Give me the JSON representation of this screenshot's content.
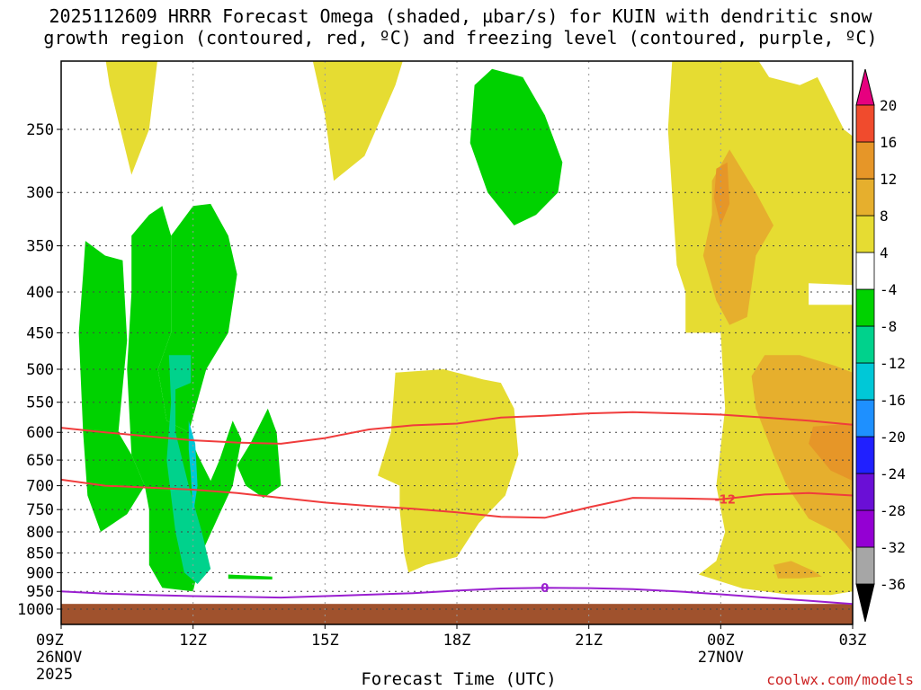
{
  "chart_data": {
    "type": "heatmap",
    "title": "2025112609 HRRR Forecast Omega (shaded, µbar/s) for KUIN with dendritic snow\ngrowth region (contoured, red, ºC) and freezing level (contoured, purple, ºC)",
    "xlabel": "Forecast Time (UTC)",
    "ylabel": "",
    "credit": "coolwx.com/models",
    "x_hours_range": [
      9,
      27
    ],
    "y_pressure_range": [
      1000,
      200
    ],
    "x_ticks": [
      {
        "h": 9,
        "label": "09Z",
        "sub1": "26NOV",
        "sub2": "2025"
      },
      {
        "h": 12,
        "label": "12Z",
        "sub1": "",
        "sub2": ""
      },
      {
        "h": 15,
        "label": "15Z",
        "sub1": "",
        "sub2": ""
      },
      {
        "h": 18,
        "label": "18Z",
        "sub1": "",
        "sub2": ""
      },
      {
        "h": 21,
        "label": "21Z",
        "sub1": "",
        "sub2": ""
      },
      {
        "h": 24,
        "label": "00Z",
        "sub1": "27NOV",
        "sub2": ""
      },
      {
        "h": 27,
        "label": "03Z",
        "sub1": "",
        "sub2": ""
      }
    ],
    "y_ticks": [
      250,
      300,
      350,
      400,
      450,
      500,
      550,
      600,
      650,
      700,
      750,
      800,
      850,
      900,
      950,
      1000
    ],
    "grid": true,
    "colorbar": {
      "levels": [
        -36,
        -32,
        -28,
        -24,
        -20,
        -16,
        -12,
        -8,
        -4,
        4,
        8,
        12,
        16,
        20
      ],
      "colors": [
        "#a6a6a6",
        "#9400d3",
        "#6a0fd6",
        "#2020ff",
        "#1e90ff",
        "#00c8d7",
        "#00d28c",
        "#00d200",
        "#ffffff",
        "#e6dc32",
        "#e6af2d",
        "#e69628",
        "#f04b2d",
        "#e6007f"
      ],
      "below_color": "#000000",
      "above_color": "#e6007f"
    },
    "ground_color": "#a0522d",
    "ground_top_hpa": 985,
    "omega_regions": [
      {
        "value": 6,
        "color": "#e6dc32",
        "points": [
          [
            10.0,
            0
          ],
          [
            11.2,
            0
          ],
          [
            11.0,
            250
          ],
          [
            10.6,
            285
          ],
          [
            10.1,
            220
          ]
        ]
      },
      {
        "value": -6,
        "color": "#00d200",
        "points": [
          [
            9.55,
            345
          ],
          [
            10.0,
            360
          ],
          [
            10.4,
            365
          ],
          [
            10.5,
            460
          ],
          [
            10.3,
            600
          ],
          [
            10.6,
            640
          ],
          [
            10.9,
            700
          ],
          [
            10.5,
            760
          ],
          [
            9.9,
            800
          ],
          [
            9.6,
            720
          ],
          [
            9.5,
            600
          ],
          [
            9.4,
            450
          ],
          [
            9.5,
            380
          ]
        ]
      },
      {
        "value": -6,
        "color": "#00d200",
        "points": [
          [
            10.6,
            340
          ],
          [
            11.0,
            320
          ],
          [
            11.3,
            312
          ],
          [
            11.5,
            340
          ],
          [
            11.5,
            450
          ],
          [
            11.2,
            500
          ],
          [
            11.4,
            580
          ],
          [
            11.9,
            600
          ],
          [
            12.1,
            640
          ],
          [
            12.4,
            690
          ],
          [
            12.6,
            650
          ],
          [
            12.9,
            580
          ],
          [
            13.1,
            612
          ],
          [
            12.9,
            700
          ],
          [
            12.6,
            760
          ],
          [
            12.2,
            850
          ],
          [
            12.0,
            950
          ],
          [
            11.3,
            940
          ],
          [
            11.0,
            880
          ],
          [
            11.0,
            750
          ],
          [
            10.9,
            700
          ],
          [
            10.6,
            640
          ],
          [
            10.5,
            500
          ],
          [
            10.6,
            400
          ]
        ]
      },
      {
        "value": -6,
        "color": "#00d200",
        "points": [
          [
            12.0,
            312
          ],
          [
            12.4,
            310
          ],
          [
            12.8,
            340
          ],
          [
            13.0,
            380
          ],
          [
            12.8,
            450
          ],
          [
            12.3,
            500
          ],
          [
            11.9,
            600
          ],
          [
            11.4,
            580
          ],
          [
            11.2,
            500
          ],
          [
            11.5,
            450
          ],
          [
            11.5,
            340
          ]
        ]
      },
      {
        "value": -6,
        "color": "#00d200",
        "points": [
          [
            13.7,
            560
          ],
          [
            13.9,
            600
          ],
          [
            14.0,
            700
          ],
          [
            13.6,
            725
          ],
          [
            13.2,
            700
          ],
          [
            13.0,
            660
          ],
          [
            13.3,
            620
          ]
        ]
      },
      {
        "value": -6,
        "color": "#00d200",
        "points": [
          [
            12.8,
            905
          ],
          [
            13.8,
            910
          ],
          [
            13.8,
            918
          ],
          [
            12.8,
            916
          ]
        ]
      },
      {
        "value": -10,
        "color": "#00d28c",
        "points": [
          [
            11.45,
            480
          ],
          [
            11.95,
            480
          ],
          [
            11.95,
            520
          ],
          [
            11.6,
            530
          ],
          [
            11.6,
            600
          ],
          [
            11.9,
            700
          ],
          [
            12.2,
            800
          ],
          [
            12.4,
            890
          ],
          [
            12.1,
            930
          ],
          [
            11.8,
            900
          ],
          [
            11.6,
            800
          ],
          [
            11.4,
            650
          ],
          [
            11.5,
            550
          ]
        ]
      },
      {
        "value": -14,
        "color": "#00c8d7",
        "points": [
          [
            11.9,
            580
          ],
          [
            12.05,
            620
          ],
          [
            12.1,
            700
          ],
          [
            12.0,
            760
          ],
          [
            11.95,
            680
          ],
          [
            11.9,
            630
          ]
        ]
      },
      {
        "value": 6,
        "color": "#e6dc32",
        "points": [
          [
            14.7,
            0
          ],
          [
            16.8,
            0
          ],
          [
            16.6,
            220
          ],
          [
            15.9,
            270
          ],
          [
            15.2,
            290
          ],
          [
            15.0,
            240
          ]
        ]
      },
      {
        "value": -6,
        "color": "#00d200",
        "points": [
          [
            18.8,
            210
          ],
          [
            19.5,
            215
          ],
          [
            20.0,
            240
          ],
          [
            20.4,
            275
          ],
          [
            20.3,
            300
          ],
          [
            19.8,
            320
          ],
          [
            19.3,
            330
          ],
          [
            18.7,
            300
          ],
          [
            18.3,
            260
          ],
          [
            18.4,
            220
          ]
        ]
      },
      {
        "value": 6,
        "color": "#e6dc32",
        "points": [
          [
            16.6,
            505
          ],
          [
            17.7,
            500
          ],
          [
            18.6,
            515
          ],
          [
            19.0,
            520
          ],
          [
            19.3,
            560
          ],
          [
            19.4,
            640
          ],
          [
            19.1,
            720
          ],
          [
            18.5,
            780
          ],
          [
            18.0,
            860
          ],
          [
            17.3,
            880
          ],
          [
            16.9,
            900
          ],
          [
            16.8,
            850
          ],
          [
            16.7,
            750
          ],
          [
            16.7,
            700
          ],
          [
            16.2,
            680
          ],
          [
            16.5,
            600
          ]
        ]
      },
      {
        "value": 6,
        "color": "#e6dc32",
        "points": [
          [
            22.9,
            0
          ],
          [
            24.2,
            0
          ],
          [
            24.8,
            0
          ],
          [
            25.1,
            215
          ],
          [
            25.8,
            220
          ],
          [
            26.2,
            215
          ],
          [
            26.8,
            250
          ],
          [
            27.0,
            255
          ],
          [
            27.0,
            950
          ],
          [
            26.5,
            960
          ],
          [
            25.5,
            958
          ],
          [
            24.5,
            942
          ],
          [
            23.5,
            905
          ],
          [
            23.9,
            870
          ],
          [
            24.1,
            800
          ],
          [
            23.9,
            700
          ],
          [
            24.1,
            560
          ],
          [
            24.0,
            450
          ],
          [
            23.2,
            450
          ],
          [
            23.2,
            400
          ],
          [
            23.0,
            370
          ],
          [
            22.8,
            250
          ]
        ]
      },
      {
        "value": 4,
        "color": "#ffffff",
        "points": [
          [
            26.0,
            390
          ],
          [
            27.0,
            392
          ],
          [
            27.0,
            415
          ],
          [
            26.0,
            415
          ]
        ]
      },
      {
        "value": 10,
        "color": "#e6af2d",
        "points": [
          [
            23.8,
            290
          ],
          [
            24.2,
            265
          ],
          [
            24.8,
            300
          ],
          [
            25.2,
            330
          ],
          [
            24.8,
            360
          ],
          [
            24.6,
            430
          ],
          [
            24.2,
            440
          ],
          [
            23.9,
            410
          ],
          [
            23.6,
            360
          ],
          [
            23.8,
            320
          ]
        ]
      },
      {
        "value": 10,
        "color": "#e6af2d",
        "points": [
          [
            25.0,
            480
          ],
          [
            25.8,
            480
          ],
          [
            26.6,
            495
          ],
          [
            27.0,
            505
          ],
          [
            27.0,
            850
          ],
          [
            26.6,
            800
          ],
          [
            26.0,
            770
          ],
          [
            25.5,
            700
          ],
          [
            25.2,
            640
          ],
          [
            24.8,
            560
          ],
          [
            24.7,
            510
          ]
        ]
      },
      {
        "value": 10,
        "color": "#e6af2d",
        "points": [
          [
            25.2,
            880
          ],
          [
            25.6,
            870
          ],
          [
            26.1,
            895
          ],
          [
            26.3,
            910
          ],
          [
            25.8,
            915
          ],
          [
            25.3,
            915
          ]
        ]
      },
      {
        "value": 14,
        "color": "#e69628",
        "points": [
          [
            23.9,
            280
          ],
          [
            24.15,
            275
          ],
          [
            24.2,
            310
          ],
          [
            24.0,
            330
          ],
          [
            23.85,
            305
          ]
        ]
      },
      {
        "value": 14,
        "color": "#e69628",
        "points": [
          [
            26.1,
            590
          ],
          [
            27.0,
            585
          ],
          [
            27.0,
            690
          ],
          [
            26.5,
            670
          ],
          [
            26.0,
            620
          ]
        ]
      }
    ],
    "series": [
      {
        "name": "",
        "color": "#f03c3c",
        "label": "",
        "points": [
          [
            9,
            592
          ],
          [
            10,
            600
          ],
          [
            11,
            607
          ],
          [
            12,
            614
          ],
          [
            13,
            618
          ],
          [
            14,
            620
          ],
          [
            15,
            610
          ],
          [
            16,
            595
          ],
          [
            17,
            588
          ],
          [
            18,
            585
          ],
          [
            19,
            575
          ],
          [
            20,
            572
          ],
          [
            21,
            568
          ],
          [
            22,
            566
          ],
          [
            23,
            568
          ],
          [
            24,
            570
          ],
          [
            25,
            575
          ],
          [
            26,
            580
          ],
          [
            27,
            587
          ]
        ]
      },
      {
        "name": "",
        "color": "#f03c3c",
        "label": "-12",
        "label_at": [
          24.1,
          728
        ],
        "points": [
          [
            9,
            688
          ],
          [
            10,
            700
          ],
          [
            11,
            704
          ],
          [
            12,
            708
          ],
          [
            13,
            715
          ],
          [
            14,
            725
          ],
          [
            15,
            735
          ],
          [
            16,
            742
          ],
          [
            17,
            748
          ],
          [
            18,
            756
          ],
          [
            19,
            766
          ],
          [
            20,
            768
          ],
          [
            21,
            745
          ],
          [
            22,
            725
          ],
          [
            23,
            726
          ],
          [
            24,
            728
          ],
          [
            25,
            718
          ],
          [
            26,
            715
          ],
          [
            27,
            720
          ]
        ]
      },
      {
        "name": "",
        "color": "#9a1fd0",
        "label": "0",
        "label_at": [
          20,
          940
        ],
        "points": [
          [
            9,
            950
          ],
          [
            10,
            956
          ],
          [
            11,
            960
          ],
          [
            12,
            963
          ],
          [
            13,
            965
          ],
          [
            14,
            967
          ],
          [
            15,
            963
          ],
          [
            16,
            959
          ],
          [
            17,
            955
          ],
          [
            18,
            948
          ],
          [
            19,
            942
          ],
          [
            20,
            940
          ],
          [
            21,
            941
          ],
          [
            22,
            944
          ],
          [
            23,
            950
          ],
          [
            24,
            958
          ],
          [
            25,
            967
          ],
          [
            26,
            976
          ],
          [
            27,
            985
          ]
        ]
      }
    ]
  }
}
